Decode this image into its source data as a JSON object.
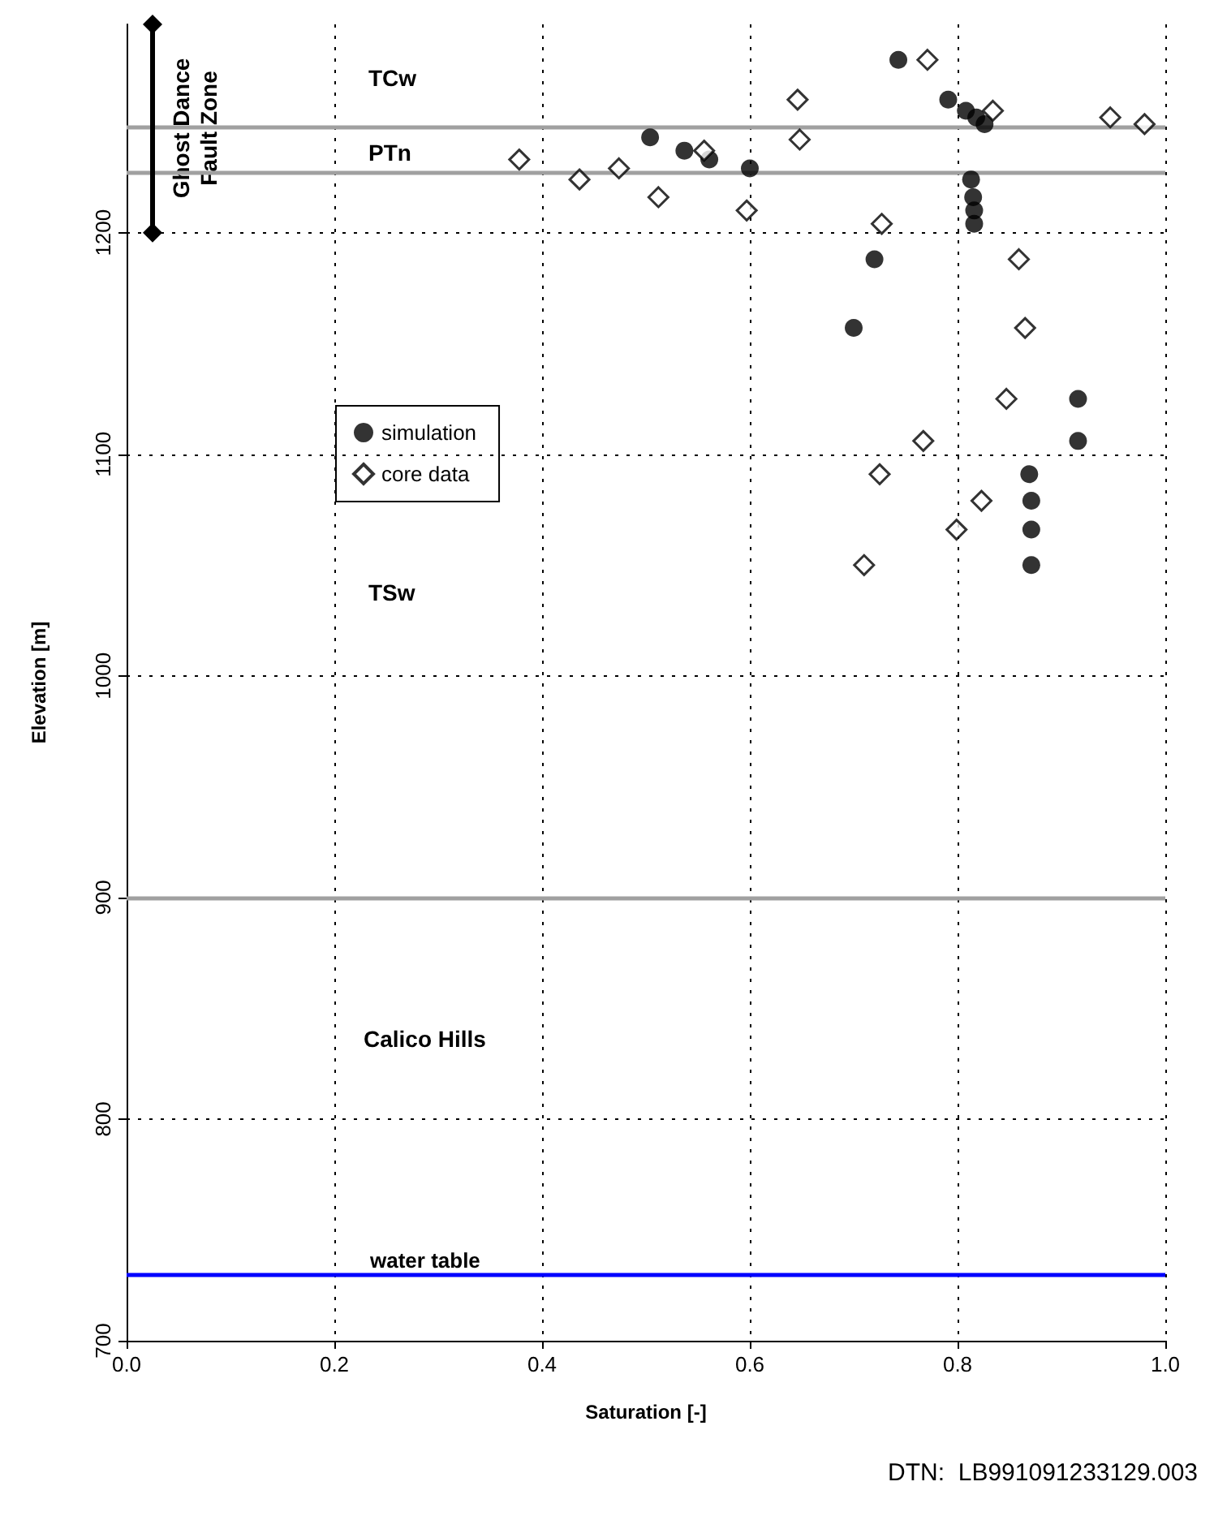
{
  "chart_data": {
    "type": "scatter",
    "xlabel": "Saturation [-]",
    "ylabel": "Elevation [m]",
    "xlim": [
      0,
      1
    ],
    "xticks": [
      {
        "value": 0,
        "label": "0.0"
      },
      {
        "value": 0.2,
        "label": "0.2"
      },
      {
        "value": 0.4,
        "label": "0.4"
      },
      {
        "value": 0.6,
        "label": "0.6"
      },
      {
        "value": 0.8,
        "label": "0.8"
      },
      {
        "value": 1,
        "label": "1.0"
      }
    ],
    "ylim": [
      700,
      1294
    ],
    "yticks": [
      700,
      800,
      900,
      1000,
      1100,
      1200
    ],
    "grid": true,
    "legend": "left",
    "series": [
      {
        "name": "simulation",
        "marker": "circle",
        "color": "#000000",
        "x": [
          0.743,
          0.504,
          0.537,
          0.561,
          0.6,
          0.791,
          0.808,
          0.818,
          0.826,
          0.813,
          0.815,
          0.816,
          0.816,
          0.72,
          0.7,
          0.916,
          0.916,
          0.869,
          0.871,
          0.871,
          0.871
        ],
        "values": [
          1278,
          1243,
          1237,
          1233,
          1229,
          1260,
          1255,
          1252,
          1249,
          1224,
          1216,
          1210,
          1204,
          1188,
          1157,
          1125,
          1106,
          1091,
          1079,
          1066,
          1050
        ]
      },
      {
        "name": "core data",
        "marker": "diamond",
        "color": "#000000",
        "x": [
          0.771,
          0.646,
          0.834,
          0.947,
          0.98,
          0.648,
          0.378,
          0.436,
          0.474,
          0.556,
          0.512,
          0.597,
          0.727,
          0.859,
          0.865,
          0.847,
          0.767,
          0.725,
          0.823,
          0.799,
          0.71
        ],
        "values": [
          1278,
          1260,
          1255,
          1252,
          1249,
          1242,
          1233,
          1224,
          1229,
          1237,
          1216,
          1210,
          1204,
          1188,
          1157,
          1125,
          1106,
          1091,
          1079,
          1066,
          1050
        ]
      },
      {
        "type": "line",
        "marker": "diamond",
        "color": "#000000",
        "x": [
          0.025,
          0.025
        ],
        "values": [
          1200,
          1294
        ]
      }
    ],
    "ref_lines": [
      {
        "axis": "y",
        "value": 1248,
        "color": "#a0a0a0"
      },
      {
        "axis": "y",
        "value": 1227,
        "color": "#a0a0a0"
      },
      {
        "axis": "y",
        "value": 900,
        "color": "#a0a0a0"
      },
      {
        "axis": "y",
        "value": 730,
        "label": "water table",
        "color": "#0000ff"
      }
    ],
    "annotations": [
      "TCw",
      "PTn",
      "TSw",
      "Calico Hills",
      "Ghost Dance Fault Zone",
      "DTN:  LB991091233129.003"
    ]
  }
}
